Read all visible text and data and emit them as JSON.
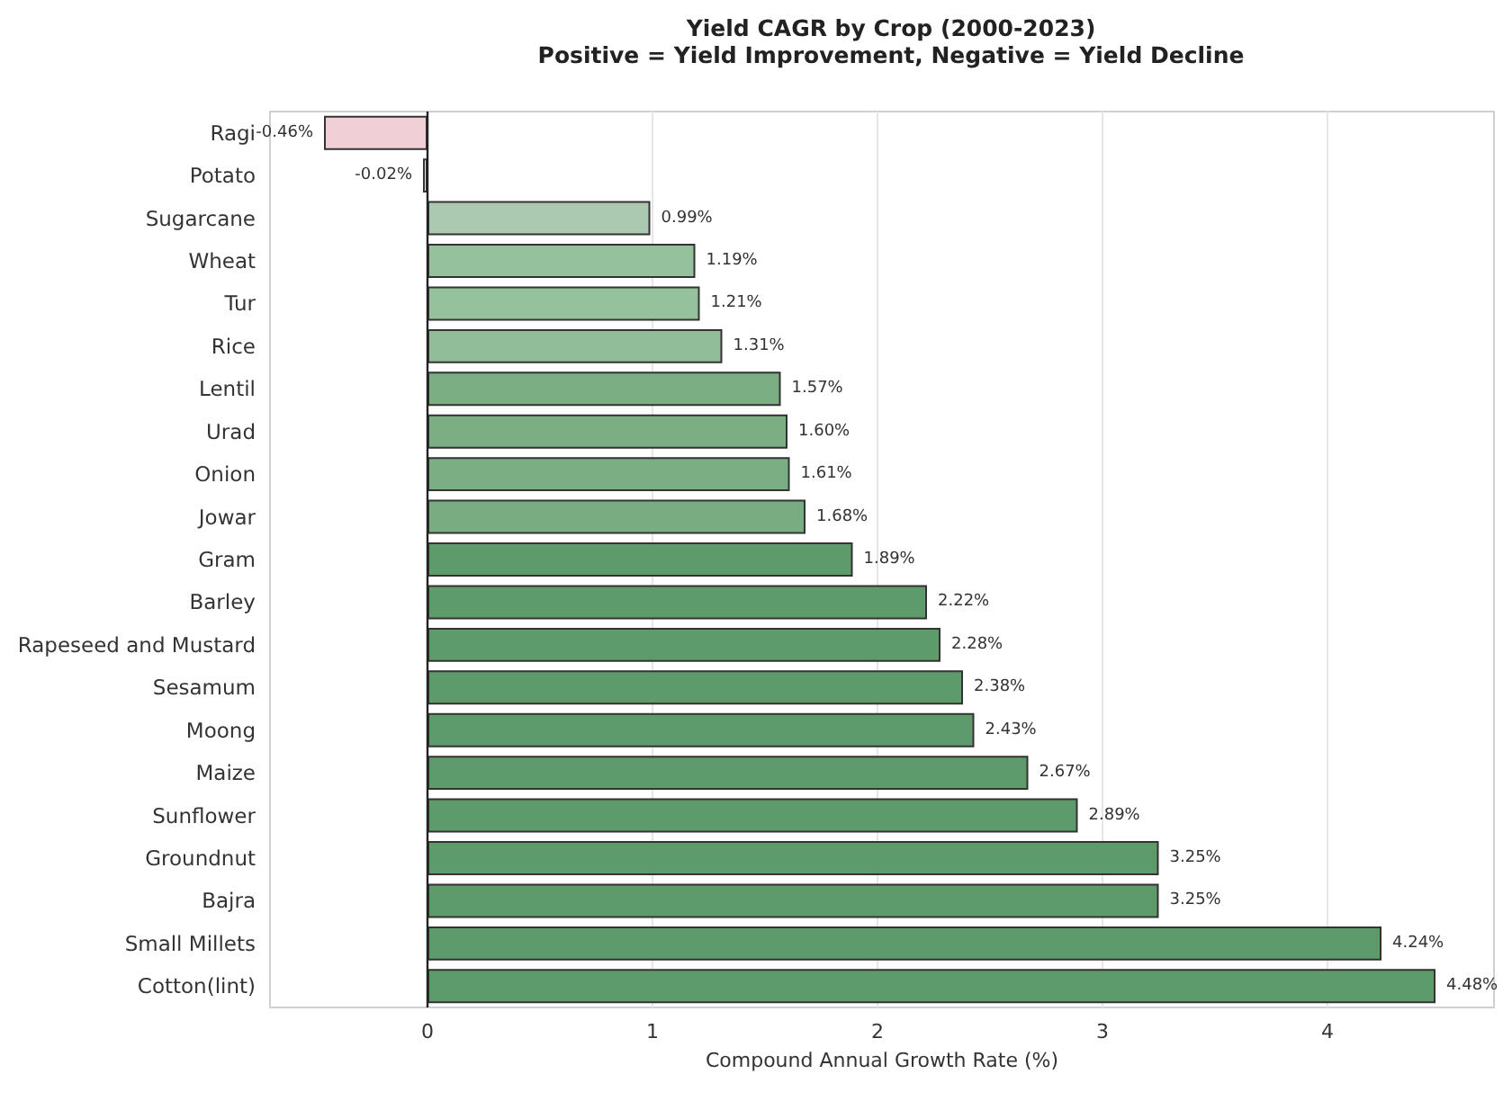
{
  "chart_data": {
    "type": "bar",
    "orientation": "horizontal",
    "title": "Yield CAGR by Crop (2000-2023)",
    "subtitle": "Positive = Yield Improvement, Negative = Yield Decline",
    "xlabel": "Compound Annual Growth Rate (%)",
    "categories": [
      "Ragi",
      "Potato",
      "Sugarcane",
      "Wheat",
      "Tur",
      "Rice",
      "Lentil",
      "Urad",
      "Onion",
      "Jowar",
      "Gram",
      "Barley",
      "Rapeseed and Mustard",
      "Sesamum",
      "Moong",
      "Maize",
      "Sunflower",
      "Groundnut",
      "Bajra",
      "Small Millets",
      "Cotton(lint)"
    ],
    "values": [
      -0.46,
      -0.02,
      0.99,
      1.19,
      1.21,
      1.31,
      1.57,
      1.6,
      1.61,
      1.68,
      1.89,
      2.22,
      2.28,
      2.38,
      2.43,
      2.67,
      2.89,
      3.25,
      3.25,
      4.24,
      4.48
    ],
    "value_labels": [
      "-0.46%",
      "-0.02%",
      "0.99%",
      "1.19%",
      "1.21%",
      "1.31%",
      "1.57%",
      "1.60%",
      "1.61%",
      "1.68%",
      "1.89%",
      "2.22%",
      "2.28%",
      "2.38%",
      "2.43%",
      "2.67%",
      "2.89%",
      "3.25%",
      "3.25%",
      "4.24%",
      "4.48%"
    ],
    "colors": [
      "#f0d0d6",
      "#f7eaec",
      "#abc9b0",
      "#96c19d",
      "#96c19d",
      "#92bd99",
      "#7aaf84",
      "#7aaf84",
      "#7aaf84",
      "#78ad82",
      "#5e9b6a",
      "#5e9b6a",
      "#5e9b6a",
      "#5e9b6a",
      "#5e9b6a",
      "#5e9b6a",
      "#5e9b6a",
      "#5e9b6a",
      "#5e9b6a",
      "#5e9b6a",
      "#5e9b6a"
    ],
    "xlim": [
      -0.7,
      4.74
    ],
    "xticks": [
      0,
      1,
      2,
      3,
      4
    ],
    "ref_lines": [
      {
        "axis": "x",
        "value": 0,
        "color": "#222222"
      }
    ],
    "grid": true
  }
}
